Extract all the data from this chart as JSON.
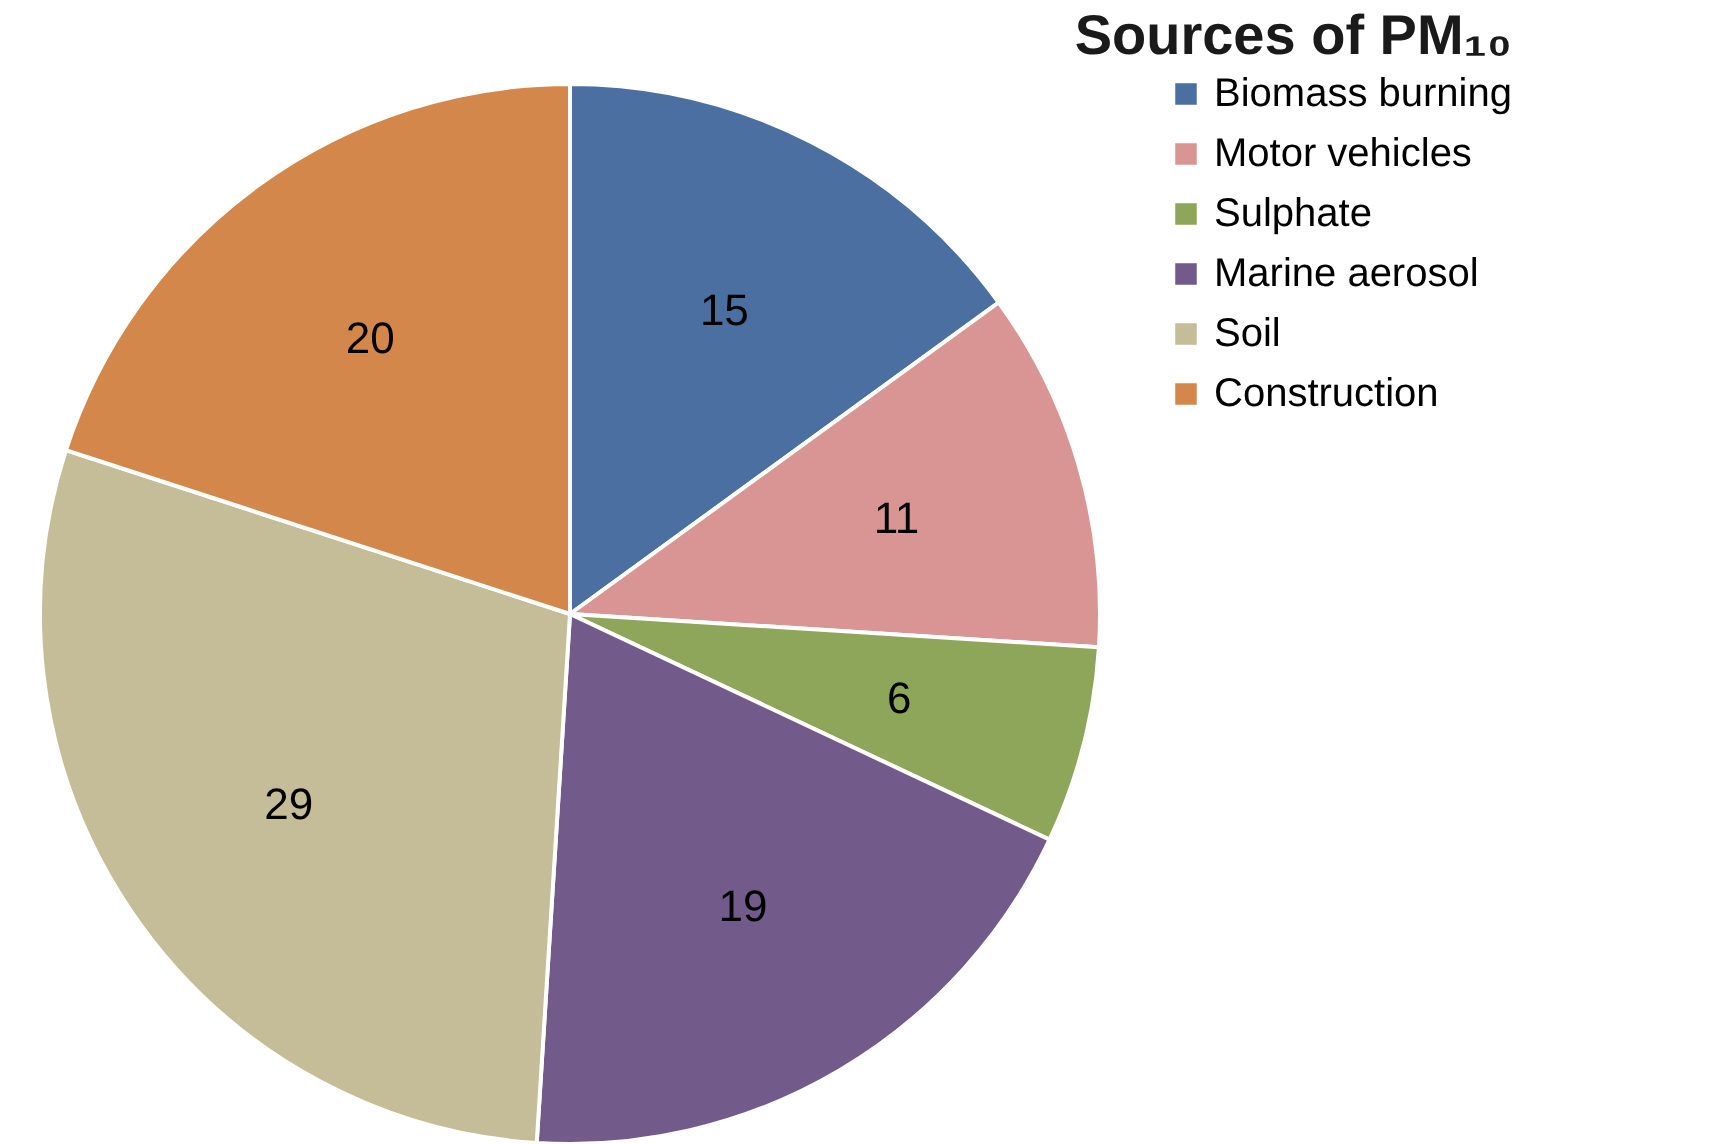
{
  "chart_data": {
    "type": "pie",
    "title": "Sources of PM₁₀",
    "categories": [
      "Biomass burning",
      "Motor vehicles",
      "Sulphate",
      "Marine aerosol",
      "Soil",
      "Construction"
    ],
    "values": [
      15,
      11,
      6,
      19,
      29,
      20
    ],
    "colors": [
      "#4a6fa0",
      "#d99594",
      "#8ea65a",
      "#725a8a",
      "#c4bd97",
      "#d4874a"
    ],
    "data_labels": true,
    "legend": "right"
  }
}
